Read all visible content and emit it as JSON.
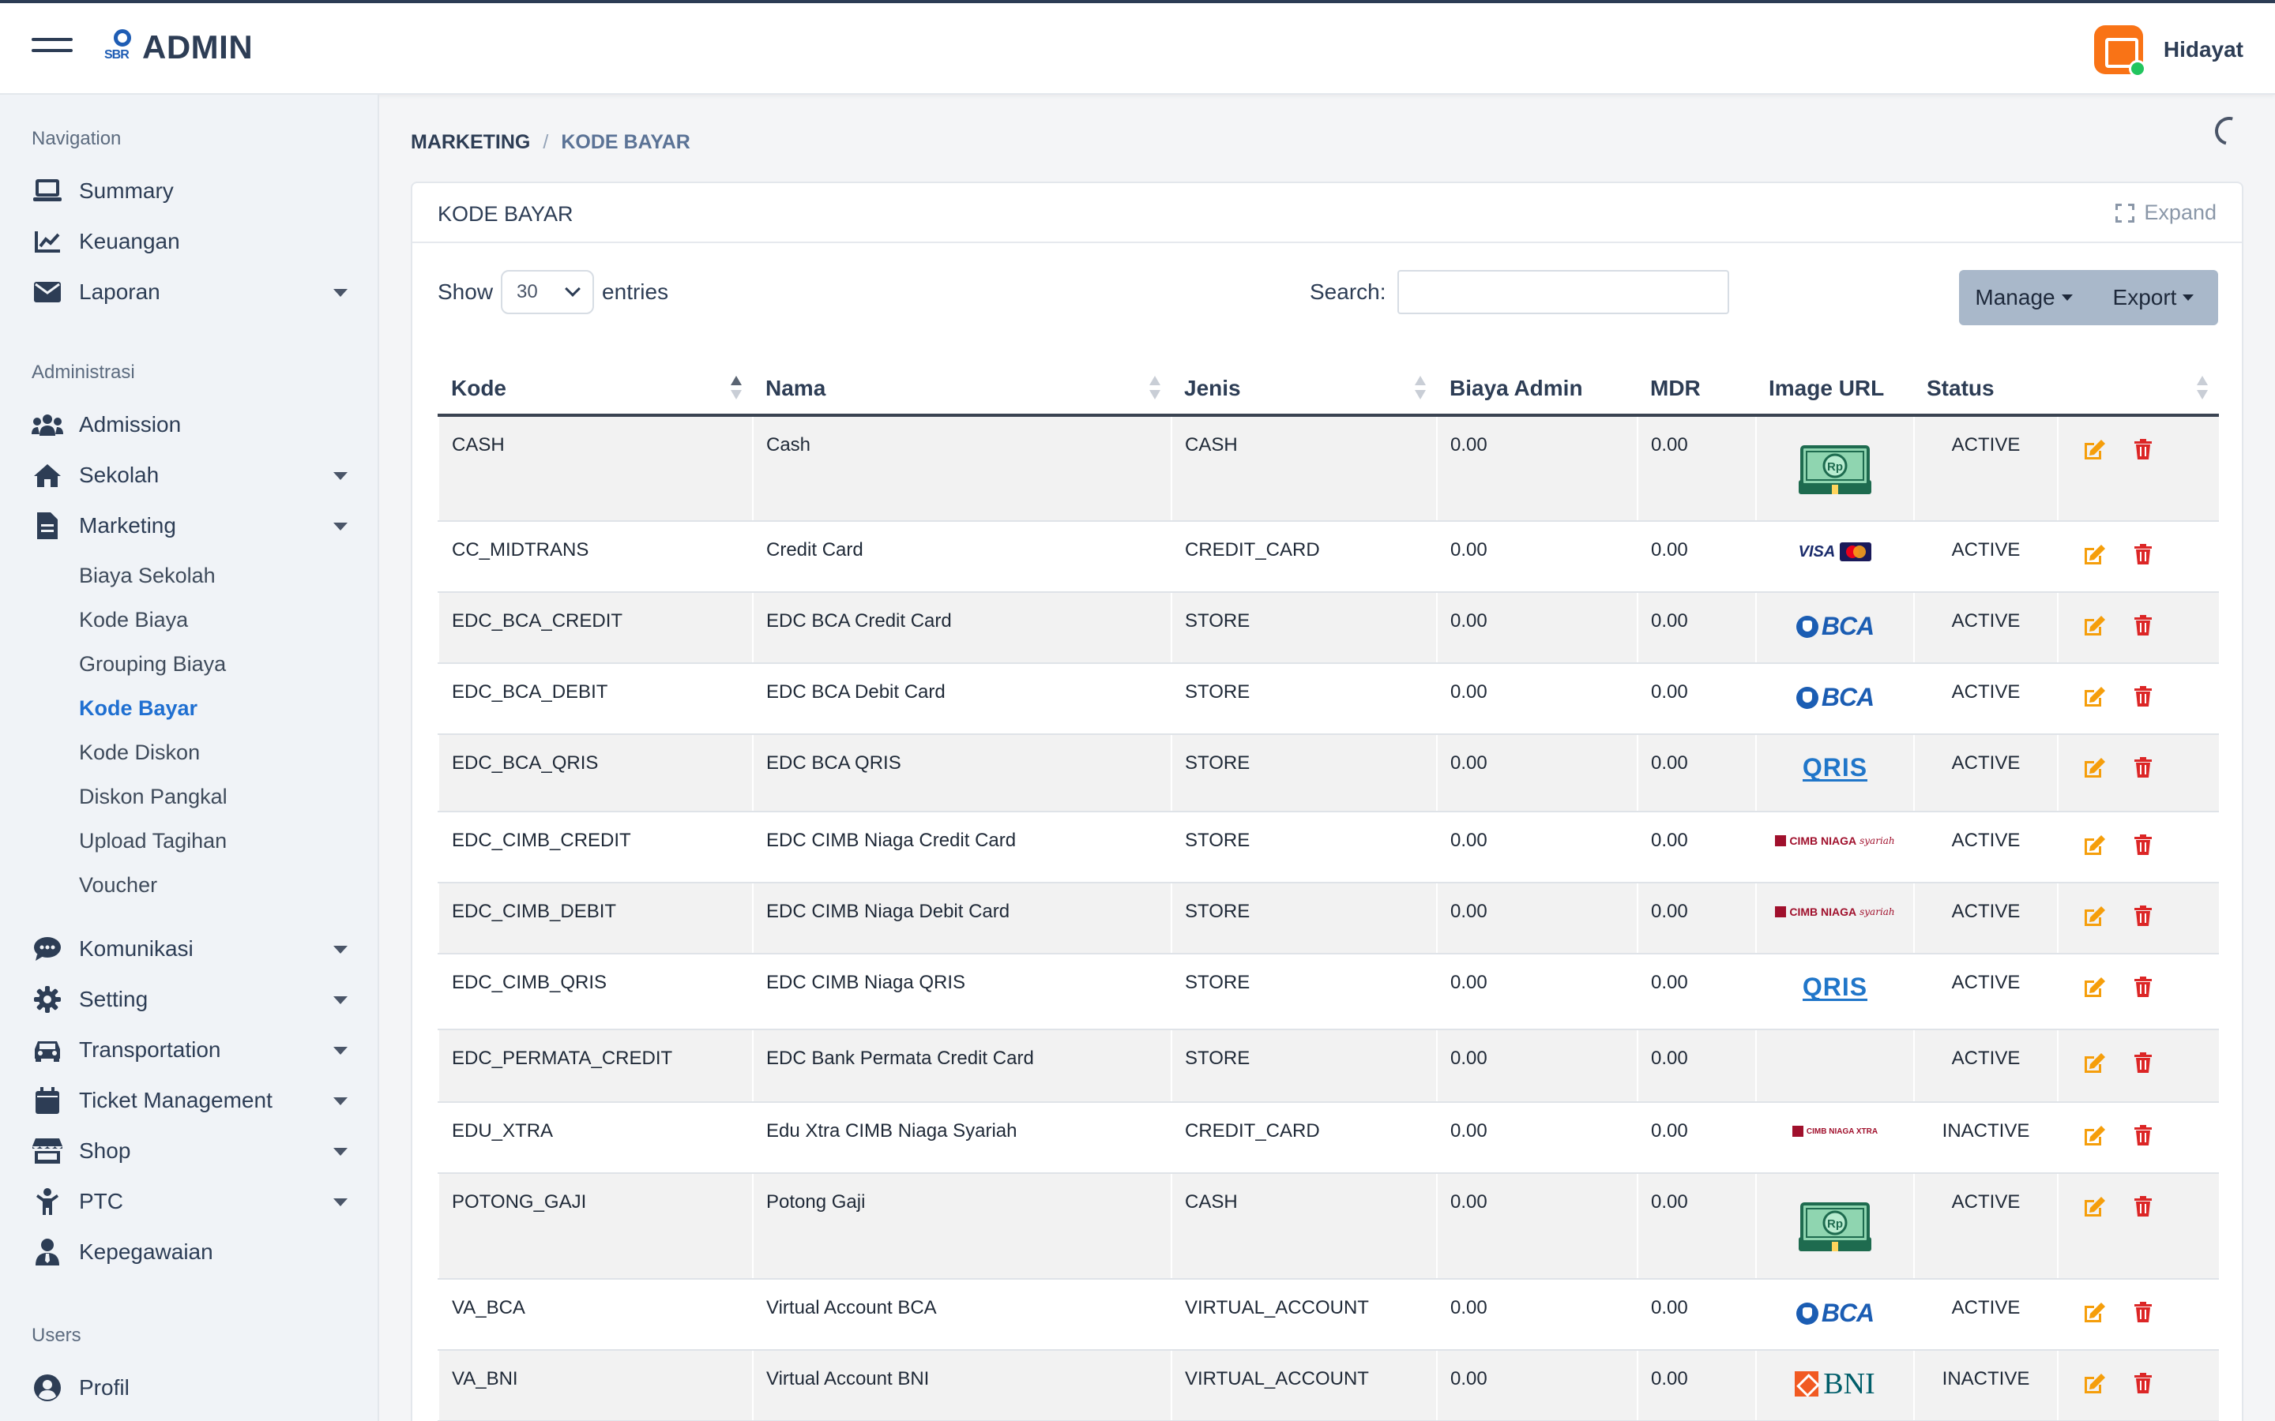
{
  "header": {
    "logo_mark": "SBR",
    "logo_text": "ADMIN",
    "user_name": "Hidayat"
  },
  "sidebar": {
    "sections": [
      {
        "heading": "Navigation"
      },
      {
        "heading": "Administrasi"
      },
      {
        "heading": "Users"
      }
    ],
    "items": [
      {
        "label": "Summary",
        "icon": "laptop-icon"
      },
      {
        "label": "Keuangan",
        "icon": "chart-line-icon"
      },
      {
        "label": "Laporan",
        "icon": "envelope-icon"
      },
      {
        "label": "Admission",
        "icon": "users-icon"
      },
      {
        "label": "Sekolah",
        "icon": "home-icon"
      },
      {
        "label": "Marketing",
        "icon": "file-icon"
      },
      {
        "label": "Komunikasi",
        "icon": "comment-icon"
      },
      {
        "label": "Setting",
        "icon": "gear-icon"
      },
      {
        "label": "Transportation",
        "icon": "car-icon"
      },
      {
        "label": "Ticket Management",
        "icon": "calendar-icon"
      },
      {
        "label": "Shop",
        "icon": "store-icon"
      },
      {
        "label": "PTC",
        "icon": "child-icon"
      },
      {
        "label": "Kepegawaian",
        "icon": "user-tie-icon"
      },
      {
        "label": "Profil",
        "icon": "user-circle-icon"
      }
    ],
    "marketing_sub": [
      "Biaya Sekolah",
      "Kode Biaya",
      "Grouping Biaya",
      "Kode Bayar",
      "Kode Diskon",
      "Diskon Pangkal",
      "Upload Tagihan",
      "Voucher"
    ],
    "active_sub": "Kode Bayar"
  },
  "breadcrumb": {
    "parent": "MARKETING",
    "separator": "/",
    "current": "KODE BAYAR"
  },
  "card": {
    "title": "KODE BAYAR",
    "expand_label": "Expand",
    "show_label": "Show",
    "entries_value": "30",
    "entries_label": "entries",
    "search_label": "Search:",
    "search_value": "",
    "manage_label": "Manage",
    "export_label": "Export"
  },
  "table": {
    "columns": [
      "Kode",
      "Nama",
      "Jenis",
      "Biaya Admin",
      "MDR",
      "Image URL",
      "Status",
      ""
    ],
    "rows": [
      {
        "kode": "CASH",
        "nama": "Cash",
        "jenis": "CASH",
        "biaya": "0.00",
        "mdr": "0.00",
        "image": "cash",
        "status": "ACTIVE"
      },
      {
        "kode": "CC_MIDTRANS",
        "nama": "Credit Card",
        "jenis": "CREDIT_CARD",
        "biaya": "0.00",
        "mdr": "0.00",
        "image": "visa-mastercard",
        "status": "ACTIVE"
      },
      {
        "kode": "EDC_BCA_CREDIT",
        "nama": "EDC BCA Credit Card",
        "jenis": "STORE",
        "biaya": "0.00",
        "mdr": "0.00",
        "image": "bca",
        "status": "ACTIVE"
      },
      {
        "kode": "EDC_BCA_DEBIT",
        "nama": "EDC BCA Debit Card",
        "jenis": "STORE",
        "biaya": "0.00",
        "mdr": "0.00",
        "image": "bca",
        "status": "ACTIVE"
      },
      {
        "kode": "EDC_BCA_QRIS",
        "nama": "EDC BCA QRIS",
        "jenis": "STORE",
        "biaya": "0.00",
        "mdr": "0.00",
        "image": "qris",
        "status": "ACTIVE"
      },
      {
        "kode": "EDC_CIMB_CREDIT",
        "nama": "EDC CIMB Niaga Credit Card",
        "jenis": "STORE",
        "biaya": "0.00",
        "mdr": "0.00",
        "image": "cimb",
        "status": "ACTIVE"
      },
      {
        "kode": "EDC_CIMB_DEBIT",
        "nama": "EDC CIMB Niaga Debit Card",
        "jenis": "STORE",
        "biaya": "0.00",
        "mdr": "0.00",
        "image": "cimb",
        "status": "ACTIVE"
      },
      {
        "kode": "EDC_CIMB_QRIS",
        "nama": "EDC CIMB Niaga QRIS",
        "jenis": "STORE",
        "biaya": "0.00",
        "mdr": "0.00",
        "image": "qris",
        "status": "ACTIVE"
      },
      {
        "kode": "EDC_PERMATA_CREDIT",
        "nama": "EDC Bank Permata Credit Card",
        "jenis": "STORE",
        "biaya": "0.00",
        "mdr": "0.00",
        "image": "",
        "status": "ACTIVE"
      },
      {
        "kode": "EDU_XTRA",
        "nama": "Edu Xtra CIMB Niaga Syariah",
        "jenis": "CREDIT_CARD",
        "biaya": "0.00",
        "mdr": "0.00",
        "image": "cimb-xtra",
        "status": "INACTIVE"
      },
      {
        "kode": "POTONG_GAJI",
        "nama": "Potong Gaji",
        "jenis": "CASH",
        "biaya": "0.00",
        "mdr": "0.00",
        "image": "cash",
        "status": "ACTIVE"
      },
      {
        "kode": "VA_BCA",
        "nama": "Virtual Account BCA",
        "jenis": "VIRTUAL_ACCOUNT",
        "biaya": "0.00",
        "mdr": "0.00",
        "image": "bca",
        "status": "ACTIVE"
      },
      {
        "kode": "VA_BNI",
        "nama": "Virtual Account BNI",
        "jenis": "VIRTUAL_ACCOUNT",
        "biaya": "0.00",
        "mdr": "0.00",
        "image": "bni",
        "status": "INACTIVE"
      }
    ]
  },
  "logos": {
    "visa": "VISA",
    "bca": "BCA",
    "qris": "QRIS",
    "cimb": "CIMB NIAGA",
    "cimb_sub": "syariah",
    "cimb_xtra": "CIMB NIAGA XTRA",
    "bni": "BNI"
  },
  "colors": {
    "accent": "#1f6fd1",
    "edit": "#f59e0b",
    "delete": "#dc2626",
    "avatar": "#f97316"
  }
}
